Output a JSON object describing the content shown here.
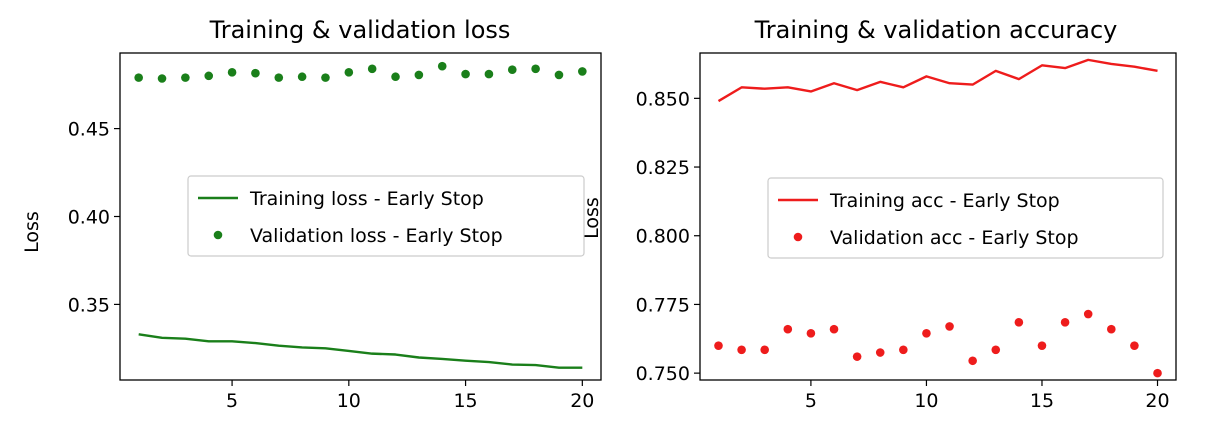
{
  "chart_data": [
    {
      "type": "line+scatter",
      "title": "Training & validation loss",
      "xlabel": "",
      "ylabel": "Loss",
      "xlim": [
        0.2,
        20.8
      ],
      "ylim": [
        0.307,
        0.493
      ],
      "xticks": [
        5,
        10,
        15,
        20
      ],
      "xtick_labels": [
        "5",
        "10",
        "15",
        "20"
      ],
      "yticks": [
        0.35,
        0.4,
        0.45
      ],
      "ytick_labels": [
        "0.35",
        "0.40",
        "0.45"
      ],
      "legend_position": "center-right",
      "color": "#1a7f1a",
      "series": [
        {
          "name": "Training loss - Early Stop",
          "style": "line",
          "x": [
            1,
            2,
            3,
            4,
            5,
            6,
            7,
            8,
            9,
            10,
            11,
            12,
            13,
            14,
            15,
            16,
            17,
            18,
            19,
            20
          ],
          "values": [
            0.333,
            0.331,
            0.3305,
            0.329,
            0.329,
            0.328,
            0.3265,
            0.3255,
            0.325,
            0.3235,
            0.322,
            0.3215,
            0.3198,
            0.319,
            0.318,
            0.3172,
            0.3158,
            0.3155,
            0.314,
            0.314
          ]
        },
        {
          "name": "Validation loss - Early Stop",
          "style": "dots",
          "x": [
            1,
            2,
            3,
            4,
            5,
            6,
            7,
            8,
            9,
            10,
            11,
            12,
            13,
            14,
            15,
            16,
            17,
            18,
            19,
            20
          ],
          "values": [
            0.479,
            0.4785,
            0.479,
            0.48,
            0.482,
            0.4815,
            0.479,
            0.4795,
            0.479,
            0.482,
            0.484,
            0.4795,
            0.4805,
            0.4855,
            0.481,
            0.481,
            0.4835,
            0.484,
            0.4805,
            0.4825
          ]
        }
      ]
    },
    {
      "type": "line+scatter",
      "title": "Training & validation accuracy",
      "xlabel": "",
      "ylabel": "Loss",
      "xlim": [
        0.2,
        20.8
      ],
      "ylim": [
        0.7475,
        0.8665
      ],
      "xticks": [
        5,
        10,
        15,
        20
      ],
      "xtick_labels": [
        "5",
        "10",
        "15",
        "20"
      ],
      "yticks": [
        0.75,
        0.775,
        0.8,
        0.825,
        0.85
      ],
      "ytick_labels": [
        "0.750",
        "0.775",
        "0.800",
        "0.825",
        "0.850"
      ],
      "legend_position": "center-right",
      "color": "#ee1c1c",
      "series": [
        {
          "name": "Training acc - Early Stop",
          "style": "line",
          "x": [
            1,
            2,
            3,
            4,
            5,
            6,
            7,
            8,
            9,
            10,
            11,
            12,
            13,
            14,
            15,
            16,
            17,
            18,
            19,
            20
          ],
          "values": [
            0.849,
            0.854,
            0.8535,
            0.854,
            0.8525,
            0.8555,
            0.853,
            0.856,
            0.854,
            0.858,
            0.8555,
            0.855,
            0.86,
            0.857,
            0.862,
            0.861,
            0.864,
            0.8625,
            0.8615,
            0.86
          ]
        },
        {
          "name": "Validation acc - Early Stop",
          "style": "dots",
          "x": [
            1,
            2,
            3,
            4,
            5,
            6,
            7,
            8,
            9,
            10,
            11,
            12,
            13,
            14,
            15,
            16,
            17,
            18,
            19,
            20
          ],
          "values": [
            0.76,
            0.7585,
            0.7585,
            0.766,
            0.7645,
            0.766,
            0.756,
            0.7575,
            0.7585,
            0.7645,
            0.767,
            0.7545,
            0.7585,
            0.7685,
            0.76,
            0.7685,
            0.7715,
            0.766,
            0.76,
            0.75
          ]
        }
      ]
    }
  ]
}
